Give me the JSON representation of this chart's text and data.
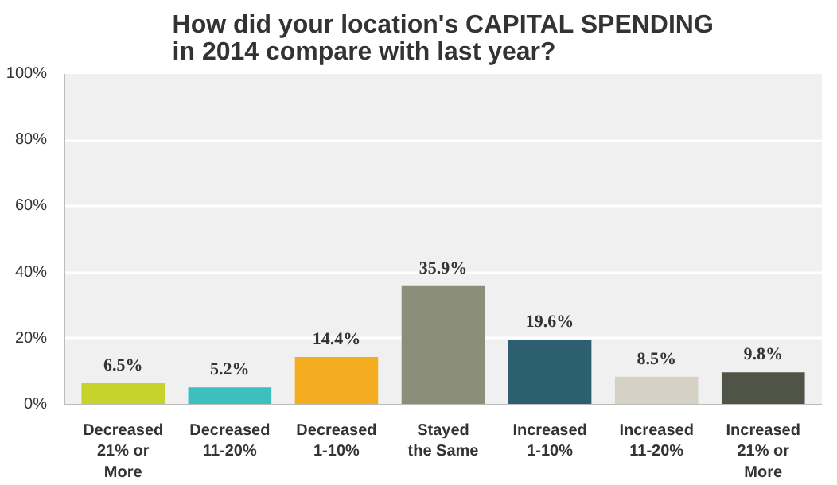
{
  "chart_data": {
    "type": "bar",
    "title": "How did your location's CAPITAL SPENDING\nin 2014 compare with last year?",
    "categories": [
      "Decreased\n21% or\nMore",
      "Decreased\n11-20%",
      "Decreased\n1-10%",
      "Stayed\nthe Same",
      "Increased\n1-10%",
      "Increased\n11-20%",
      "Increased\n21% or\nMore"
    ],
    "values": [
      6.5,
      5.2,
      14.4,
      35.9,
      19.6,
      8.5,
      9.8
    ],
    "colors": [
      "#c5d32c",
      "#3dbfc0",
      "#f4ad20",
      "#8b8f79",
      "#2c6070",
      "#d5d1c5",
      "#4f5446"
    ],
    "value_labels": [
      "6.5%",
      "5.2%",
      "14.4%",
      "35.9%",
      "19.6%",
      "8.5%",
      "9.8%"
    ],
    "ylim": [
      0,
      100
    ],
    "yticks": [
      {
        "value": 0,
        "label": "0%"
      },
      {
        "value": 20,
        "label": "20%"
      },
      {
        "value": 40,
        "label": "40%"
      },
      {
        "value": 60,
        "label": "60%"
      },
      {
        "value": 80,
        "label": "80%"
      },
      {
        "value": 100,
        "label": "100%"
      }
    ],
    "grid": "y"
  }
}
